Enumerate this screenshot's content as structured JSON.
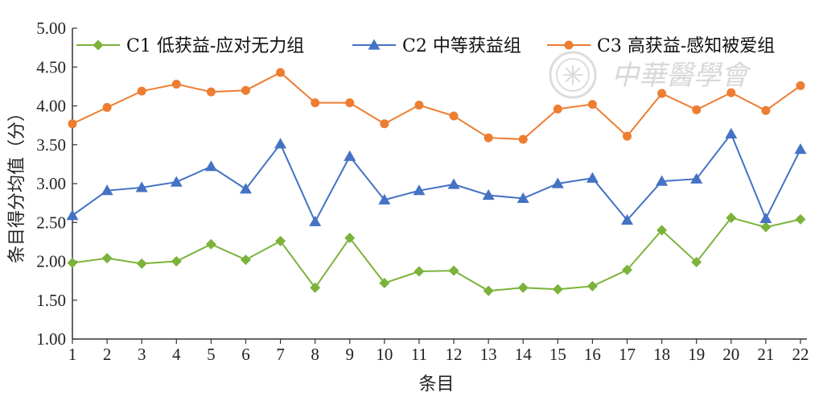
{
  "chart_data": {
    "type": "line",
    "xlabel": "条目",
    "ylabel": "条目得分均值（分）",
    "ylim": [
      1.0,
      5.0
    ],
    "yticks": [
      "1.00",
      "1.50",
      "2.00",
      "2.50",
      "3.00",
      "3.50",
      "4.00",
      "4.50",
      "5.00"
    ],
    "x": [
      1,
      2,
      3,
      4,
      5,
      6,
      7,
      8,
      9,
      10,
      11,
      12,
      13,
      14,
      15,
      16,
      17,
      18,
      19,
      20,
      21,
      22
    ],
    "series": [
      {
        "name": "C1 低获益-应对无力组",
        "color": "#7bb33a",
        "marker": "diamond",
        "values": [
          1.98,
          2.04,
          1.97,
          2.0,
          2.22,
          2.02,
          2.26,
          1.66,
          2.3,
          1.72,
          1.87,
          1.88,
          1.62,
          1.66,
          1.64,
          1.68,
          1.89,
          2.4,
          1.99,
          2.56,
          2.44,
          2.54
        ]
      },
      {
        "name": "C2 中等获益组",
        "color": "#4472c4",
        "marker": "triangle",
        "values": [
          2.59,
          2.91,
          2.95,
          3.02,
          3.22,
          2.93,
          3.51,
          2.51,
          3.35,
          2.79,
          2.91,
          2.99,
          2.85,
          2.81,
          3.0,
          3.07,
          2.53,
          3.03,
          3.06,
          3.64,
          2.55,
          3.44
        ]
      },
      {
        "name": "C3 高获益-感知被爱组",
        "color": "#ed7d31",
        "marker": "circle",
        "values": [
          3.77,
          3.98,
          4.19,
          4.28,
          4.18,
          4.2,
          4.43,
          4.04,
          4.04,
          3.77,
          4.01,
          3.87,
          3.59,
          3.57,
          3.96,
          4.02,
          3.61,
          4.16,
          3.95,
          4.17,
          3.94,
          4.26
        ]
      }
    ],
    "legend_position": "top",
    "grid": false
  },
  "watermark": {
    "text": "中華醫學會"
  }
}
